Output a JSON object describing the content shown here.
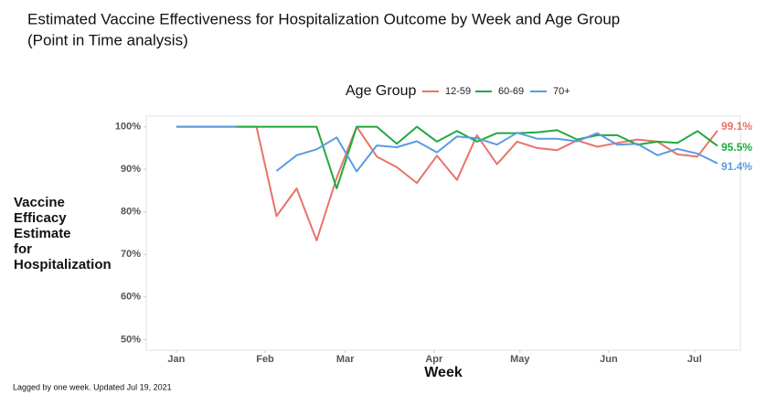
{
  "chart_data": {
    "type": "line",
    "title": "Estimated Vaccine Effectiveness for Hospitalization Outcome by Week and Age Group",
    "subtitle": "(Point in Time analysis)",
    "xlabel": "Week",
    "ylabel": [
      "Vaccine",
      "Efficacy",
      "Estimate",
      "for",
      "Hospitalization"
    ],
    "legend_title": "Age Group",
    "legend": "top",
    "footnote": "Lagged by one week. Updated Jul 19, 2021",
    "x": [
      1,
      8,
      15,
      22,
      29,
      36,
      43,
      50,
      57,
      64,
      71,
      78,
      85,
      92,
      99,
      106,
      113,
      120,
      127,
      134,
      141,
      148,
      155,
      162,
      169,
      176,
      183,
      190
    ],
    "xlim": [
      -9.5,
      198
    ],
    "xticks": [
      {
        "value": 1,
        "label": "Jan"
      },
      {
        "value": 32,
        "label": "Feb"
      },
      {
        "value": 60,
        "label": "Mar"
      },
      {
        "value": 91,
        "label": "Apr"
      },
      {
        "value": 121,
        "label": "May"
      },
      {
        "value": 152,
        "label": "Jun"
      },
      {
        "value": 182,
        "label": "Jul"
      }
    ],
    "ylim": [
      47.5,
      102.5
    ],
    "yticks": [
      {
        "value": 50,
        "label": "50%"
      },
      {
        "value": 60,
        "label": "60%"
      },
      {
        "value": 70,
        "label": "70%"
      },
      {
        "value": 80,
        "label": "80%"
      },
      {
        "value": 90,
        "label": "90%"
      },
      {
        "value": 100,
        "label": "100%"
      }
    ],
    "grid": false,
    "series": [
      {
        "name": "12-59",
        "color": "#e8736c",
        "values": [
          null,
          null,
          null,
          100,
          100,
          79,
          85.5,
          73.3,
          88,
          100,
          93,
          90.5,
          86.8,
          93.2,
          87.5,
          98,
          91.2,
          96.5,
          95,
          94.5,
          96.8,
          95.3,
          96.2,
          97,
          96.5,
          93.5,
          93,
          99.1
        ],
        "value_labels": [
          null,
          null,
          null,
          null,
          null,
          null,
          null,
          null,
          null,
          null,
          null,
          null,
          null,
          null,
          null,
          null,
          null,
          null,
          null,
          null,
          null,
          null,
          null,
          null,
          null,
          null,
          null,
          "99.1%"
        ]
      },
      {
        "name": "60-69",
        "color": "#1faa3c",
        "values": [
          100,
          100,
          100,
          100,
          100,
          100,
          100,
          100,
          85.5,
          100,
          100,
          96,
          100,
          96.5,
          99,
          96.5,
          98.5,
          98.5,
          98.7,
          99.2,
          97,
          98,
          98,
          95.8,
          96.5,
          96.2,
          99,
          95.5
        ],
        "value_labels": [
          null,
          null,
          null,
          null,
          null,
          null,
          null,
          null,
          null,
          null,
          null,
          null,
          null,
          null,
          null,
          null,
          null,
          null,
          null,
          null,
          null,
          null,
          null,
          null,
          null,
          null,
          null,
          "95.5%"
        ]
      },
      {
        "name": "70+",
        "color": "#5b9be0",
        "values": [
          100,
          100,
          100,
          100,
          null,
          89.6,
          93.3,
          94.7,
          97.5,
          89.5,
          95.6,
          95.2,
          96.6,
          94,
          97.7,
          97.3,
          95.8,
          98.6,
          97.2,
          97.2,
          96.6,
          98.5,
          95.8,
          96,
          93.3,
          94.8,
          93.7,
          91.4
        ],
        "value_labels": [
          null,
          null,
          null,
          null,
          null,
          null,
          null,
          null,
          null,
          null,
          null,
          null,
          null,
          null,
          null,
          null,
          null,
          null,
          null,
          null,
          null,
          null,
          null,
          null,
          null,
          null,
          null,
          "91.4%"
        ]
      }
    ]
  }
}
